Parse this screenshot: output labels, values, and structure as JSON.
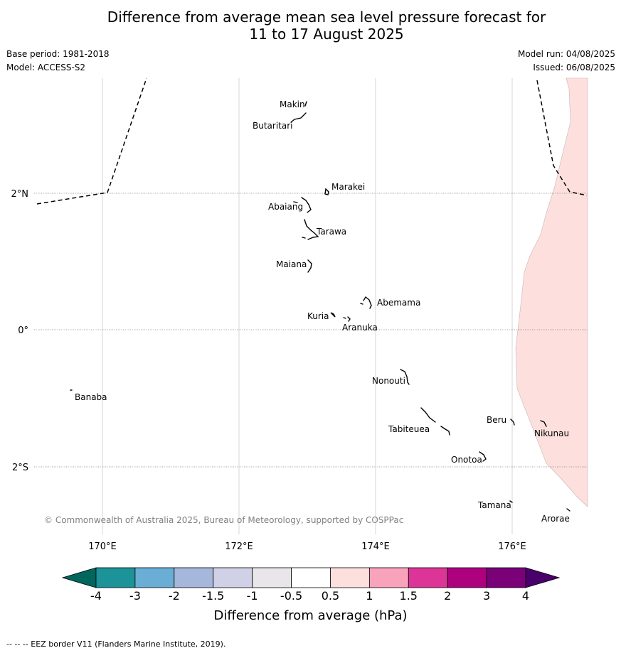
{
  "title": {
    "line1": "Difference from average mean sea level pressure forecast for",
    "line2": "11 to 17 August 2025"
  },
  "meta": {
    "base_period": "Base period: 1981-2018",
    "model": "Model: ACCESS-S2",
    "model_run": "Model run: 04/08/2025",
    "issued": "Issued: 06/08/2025"
  },
  "map": {
    "lon_labels": [
      "170°E",
      "172°E",
      "174°E",
      "176°E"
    ],
    "lat_labels": [
      "2°N",
      "0°",
      "2°S"
    ],
    "places": [
      {
        "name": "Makin"
      },
      {
        "name": "Butaritari"
      },
      {
        "name": "Marakei"
      },
      {
        "name": "Abaiang"
      },
      {
        "name": "Tarawa"
      },
      {
        "name": "Maiana"
      },
      {
        "name": "Abemama"
      },
      {
        "name": "Kuria"
      },
      {
        "name": "Aranuka"
      },
      {
        "name": "Banaba"
      },
      {
        "name": "Nonouti"
      },
      {
        "name": "Tabiteuea"
      },
      {
        "name": "Beru"
      },
      {
        "name": "Nikunau"
      },
      {
        "name": "Onotoa"
      },
      {
        "name": "Tamana"
      },
      {
        "name": "Arorae"
      }
    ],
    "shaded_anomaly_class": "0.5 to 1",
    "copyright": "© Commonwealth of Australia 2025, Bureau of Meteorology, supported by COSPPac"
  },
  "colorbar": {
    "ticks": [
      "-4",
      "-3",
      "-2",
      "-1.5",
      "-1",
      "-0.5",
      "0.5",
      "1",
      "1.5",
      "2",
      "3",
      "4"
    ],
    "colors": [
      "#1b9399",
      "#6aadd5",
      "#a5b7da",
      "#d0d0e6",
      "#e8e6e8",
      "#ffffff",
      "#fde0de",
      "#f8a2bc",
      "#dd3597",
      "#ae017e",
      "#7a0177"
    ],
    "low_extension_color": "#01665e",
    "high_extension_color": "#49006a",
    "label": "Difference from average (hPa)"
  },
  "footer": "--  --  -- EEZ border V11 (Flanders Marine Institute, 2019)."
}
